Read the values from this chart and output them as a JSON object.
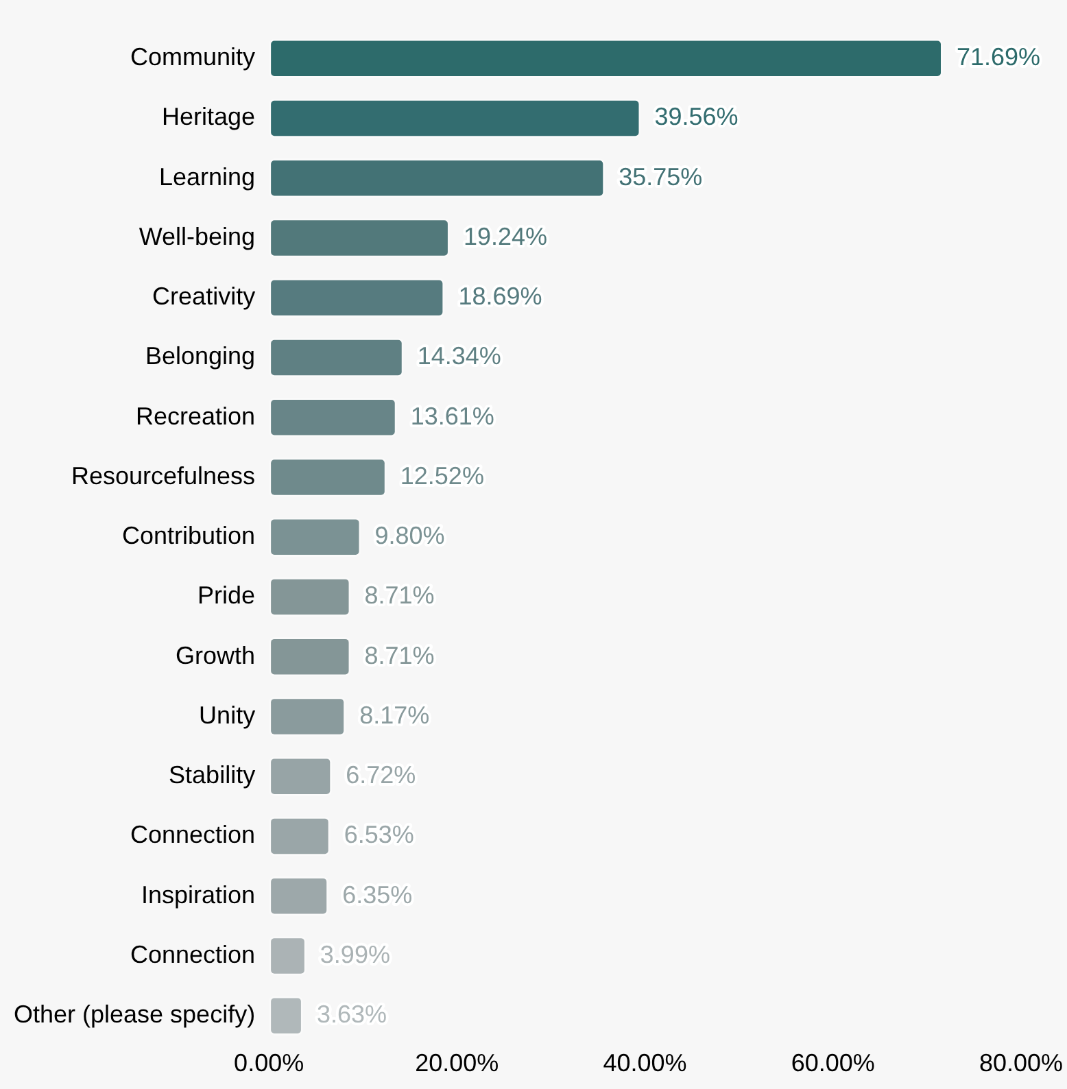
{
  "chart_data": {
    "type": "bar",
    "orientation": "horizontal",
    "categories": [
      "Community",
      "Heritage",
      "Learning",
      "Well-being",
      "Creativity",
      "Belonging",
      "Recreation",
      "Resourcefulness",
      "Contribution",
      "Pride",
      "Growth",
      "Unity",
      "Stability",
      "Connection",
      "Inspiration",
      "Connection",
      "Other (please specify)"
    ],
    "values": [
      71.69,
      39.56,
      35.75,
      19.24,
      18.69,
      14.34,
      13.61,
      12.52,
      9.8,
      8.71,
      8.71,
      8.17,
      6.72,
      6.53,
      6.35,
      3.99,
      3.63
    ],
    "value_labels": [
      "71.69%",
      "39.56%",
      "35.75%",
      "19.24%",
      "18.69%",
      "14.34%",
      "13.61%",
      "12.52%",
      "9.80%",
      "8.71%",
      "8.71%",
      "8.17%",
      "6.72%",
      "6.53%",
      "6.35%",
      "3.99%",
      "3.63%"
    ],
    "colors": [
      "#2d6b6b",
      "#336d70",
      "#437275",
      "#52797b",
      "#567b7f",
      "#5f8083",
      "#688588",
      "#6f8a8c",
      "#7b9294",
      "#849697",
      "#849697",
      "#8a9b9d",
      "#97a4a6",
      "#9aa6a8",
      "#9da8aa",
      "#abb3b5",
      "#b0b8ba"
    ],
    "xlim": [
      0,
      80
    ],
    "xticks": [
      {
        "value": 0,
        "label": "0.00%"
      },
      {
        "value": 20,
        "label": "20.00%"
      },
      {
        "value": 40,
        "label": "40.00%"
      },
      {
        "value": 60,
        "label": "60.00%"
      },
      {
        "value": 80,
        "label": "80.00%"
      }
    ],
    "grid": false,
    "legend": false
  }
}
